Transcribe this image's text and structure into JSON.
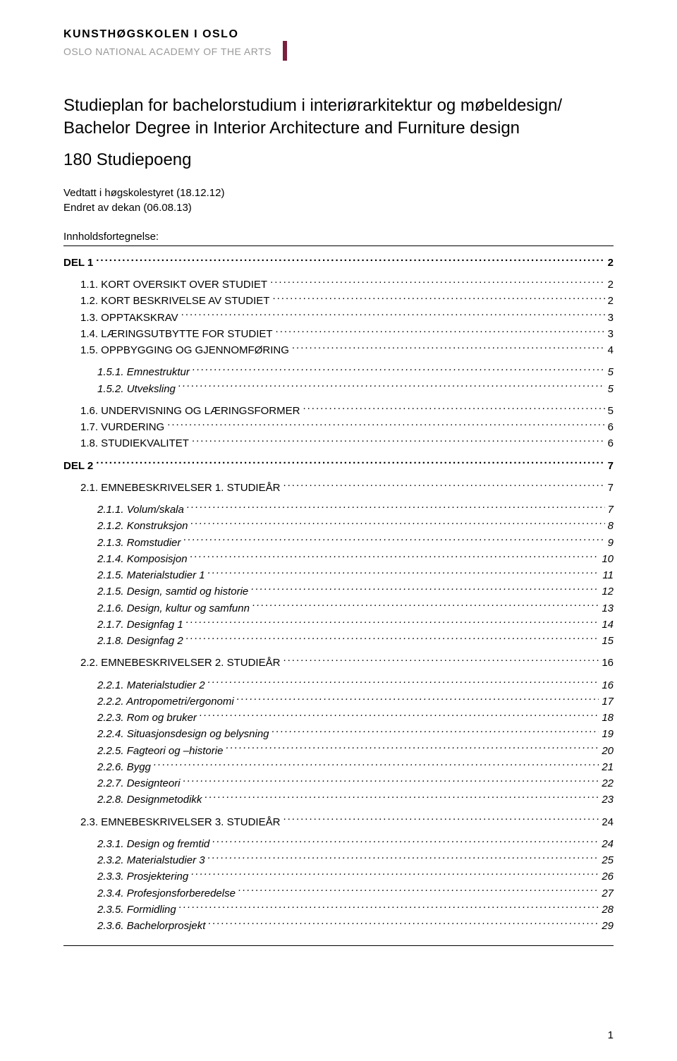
{
  "logo": {
    "line1": "KUNSTHØGSKOLEN I OSLO",
    "line2": "OSLO NATIONAL ACADEMY OF THE ARTS"
  },
  "title": "Studieplan for bachelorstudium i interiørarkitektur og møbeldesign/ Bachelor Degree in Interior Architecture and Furniture design",
  "credits": "180 Studiepoeng",
  "meta1": "Vedtatt i høgskolestyret (18.12.12)",
  "meta2": "Endret av dekan (06.08.13)",
  "toc_heading": "Innholdsfortegnelse:",
  "page_number": "1",
  "toc": [
    {
      "level": 0,
      "label": "DEL 1",
      "page": "2"
    },
    {
      "level": 1,
      "label": "1.1. KORT OVERSIKT OVER STUDIET",
      "page": "2",
      "gap": true
    },
    {
      "level": 1,
      "label": "1.2. KORT BESKRIVELSE AV STUDIET",
      "page": "2"
    },
    {
      "level": 1,
      "label": "1.3. OPPTAKSKRAV",
      "page": "3"
    },
    {
      "level": 1,
      "label": "1.4. LÆRINGSUTBYTTE FOR STUDIET",
      "page": "3"
    },
    {
      "level": 1,
      "label": "1.5. OPPBYGGING OG GJENNOMFØRING",
      "page": "4"
    },
    {
      "level": 2,
      "label": "1.5.1. Emnestruktur",
      "page": "5",
      "gap": true
    },
    {
      "level": 2,
      "label": "1.5.2. Utveksling",
      "page": "5"
    },
    {
      "level": 1,
      "label": "1.6. UNDERVISNING OG LÆRINGSFORMER",
      "page": "5",
      "gap": true
    },
    {
      "level": 1,
      "label": "1.7. VURDERING",
      "page": "6"
    },
    {
      "level": 1,
      "label": "1.8. STUDIEKVALITET",
      "page": "6"
    },
    {
      "level": 0,
      "label": "DEL 2",
      "page": "7"
    },
    {
      "level": 1,
      "label": "2.1. EMNEBESKRIVELSER 1. STUDIEÅR",
      "page": "7",
      "gap": true
    },
    {
      "level": 2,
      "label": "2.1.1. Volum/skala",
      "page": "7",
      "gap": true
    },
    {
      "level": 2,
      "label": "2.1.2. Konstruksjon",
      "page": "8"
    },
    {
      "level": 2,
      "label": "2.1.3. Romstudier",
      "page": "9"
    },
    {
      "level": 2,
      "label": "2.1.4. Komposisjon",
      "page": "10"
    },
    {
      "level": 2,
      "label": "2.1.5. Materialstudier 1",
      "page": "11"
    },
    {
      "level": 2,
      "label": "2.1.5. Design, samtid og historie",
      "page": "12"
    },
    {
      "level": 2,
      "label": "2.1.6. Design, kultur og samfunn",
      "page": "13"
    },
    {
      "level": 2,
      "label": "2.1.7. Designfag 1",
      "page": "14"
    },
    {
      "level": 2,
      "label": "2.1.8. Designfag 2",
      "page": "15"
    },
    {
      "level": 1,
      "label": "2.2. EMNEBESKRIVELSER 2. STUDIEÅR",
      "page": "16",
      "gap": true
    },
    {
      "level": 2,
      "label": "2.2.1. Materialstudier 2",
      "page": "16",
      "gap": true
    },
    {
      "level": 2,
      "label": "2.2.2. Antropometri/ergonomi",
      "page": "17"
    },
    {
      "level": 2,
      "label": "2.2.3. Rom og bruker",
      "page": "18"
    },
    {
      "level": 2,
      "label": "2.2.4. Situasjonsdesign og belysning",
      "page": "19"
    },
    {
      "level": 2,
      "label": "2.2.5. Fagteori og –historie",
      "page": "20"
    },
    {
      "level": 2,
      "label": "2.2.6. Bygg",
      "page": "21"
    },
    {
      "level": 2,
      "label": "2.2.7. Designteori",
      "page": "22"
    },
    {
      "level": 2,
      "label": "2.2.8. Designmetodikk",
      "page": "23"
    },
    {
      "level": 1,
      "label": "2.3. EMNEBESKRIVELSER 3. STUDIEÅR",
      "page": "24",
      "gap": true
    },
    {
      "level": 2,
      "label": "2.3.1. Design og fremtid",
      "page": "24",
      "gap": true
    },
    {
      "level": 2,
      "label": "2.3.2. Materialstudier 3",
      "page": "25"
    },
    {
      "level": 2,
      "label": "2.3.3. Prosjektering",
      "page": "26"
    },
    {
      "level": 2,
      "label": "2.3.4. Profesjonsforberedelse",
      "page": "27"
    },
    {
      "level": 2,
      "label": "2.3.5. Formidling",
      "page": "28"
    },
    {
      "level": 2,
      "label": "2.3.6. Bachelorprosjekt",
      "page": "29"
    }
  ]
}
